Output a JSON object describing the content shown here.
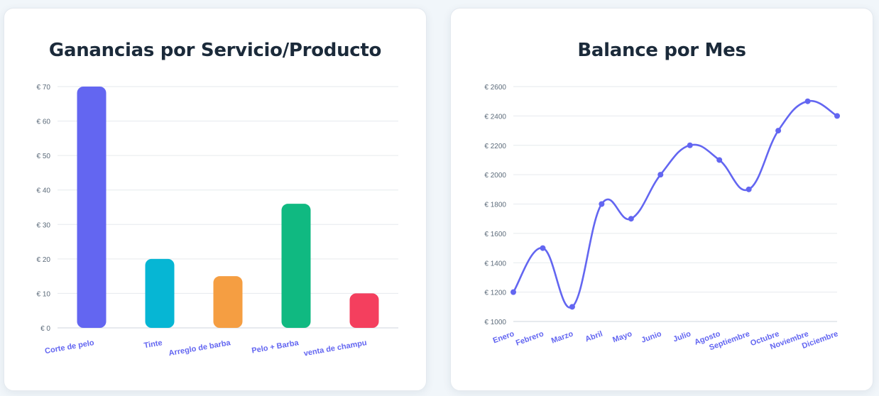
{
  "chart_data": [
    {
      "type": "bar",
      "title": "Ganancias por Servicio/Producto",
      "categories": [
        "Corte de pelo",
        "Tinte",
        "Arreglo de barba",
        "Pelo + Barba",
        "venta de champu"
      ],
      "values": [
        70,
        20,
        15,
        36,
        10
      ],
      "colors": [
        "#6366f1",
        "#06b6d4",
        "#f59e42",
        "#10b981",
        "#f43f5e"
      ],
      "ylim": [
        0,
        70
      ],
      "yticks": [
        0,
        10,
        20,
        30,
        40,
        50,
        60,
        70
      ],
      "tick_prefix": "€ ",
      "label_color": "#6366f1",
      "grid": true
    },
    {
      "type": "line",
      "title": "Balance por Mes",
      "categories": [
        "Enero",
        "Febrero",
        "Marzo",
        "Abril",
        "Mayo",
        "Junio",
        "Julio",
        "Agosto",
        "Septiembre",
        "Octubre",
        "Noviembre",
        "Diciembre"
      ],
      "values": [
        1200,
        1500,
        1100,
        1800,
        1700,
        2000,
        2200,
        2100,
        1900,
        2300,
        2500,
        2400
      ],
      "color": "#6366f1",
      "ylim": [
        1000,
        2600
      ],
      "yticks": [
        1000,
        1200,
        1400,
        1600,
        1800,
        2000,
        2200,
        2400,
        2600
      ],
      "tick_prefix": "€ ",
      "label_color": "#6366f1",
      "grid": true
    }
  ]
}
